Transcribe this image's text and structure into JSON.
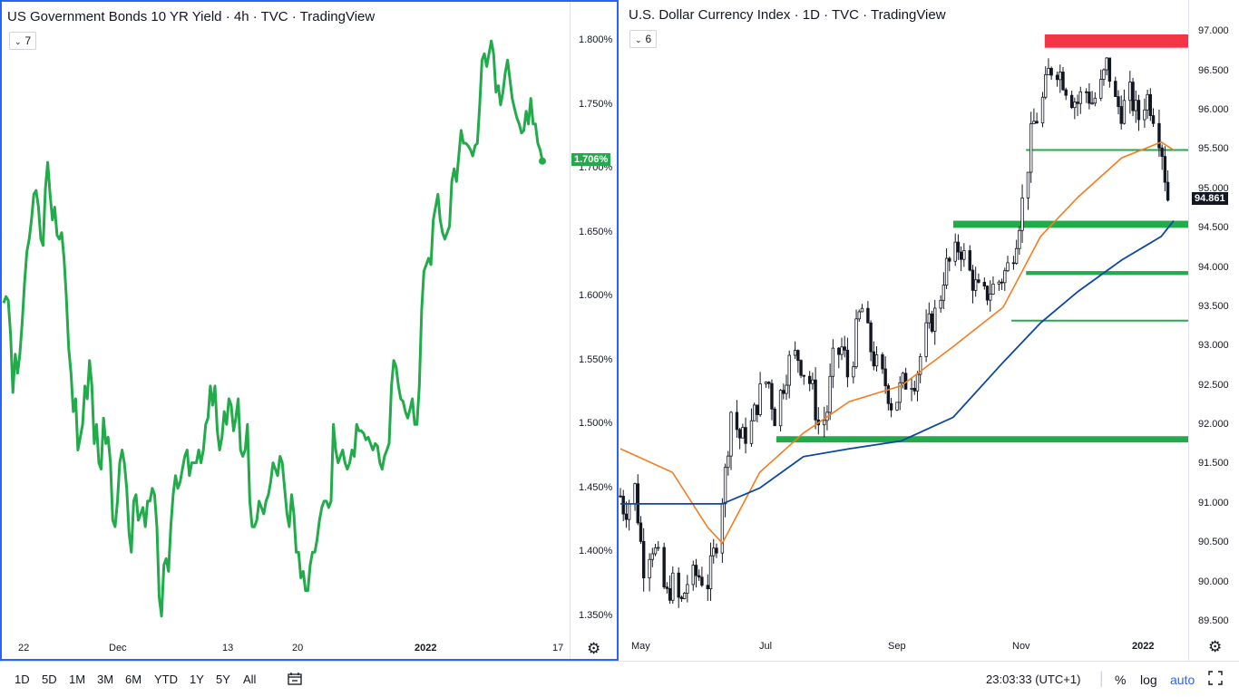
{
  "left_pane": {
    "title": "US Government Bonds 10 YR Yield · 4h · TVC · TradingView",
    "collapse_count": "7",
    "last_value_label": "1.706%",
    "line_color": "#22ab4a",
    "price_axis_labels": [
      "1.800%",
      "1.750%",
      "1.700%",
      "1.650%",
      "1.600%",
      "1.550%",
      "1.500%",
      "1.450%",
      "1.400%",
      "1.350%"
    ],
    "time_axis_labels": [
      {
        "text": "22",
        "bold": false
      },
      {
        "text": "Dec",
        "bold": false
      },
      {
        "text": "13",
        "bold": false
      },
      {
        "text": "20",
        "bold": false
      },
      {
        "text": "2022",
        "bold": true
      },
      {
        "text": "17",
        "bold": false
      }
    ]
  },
  "right_pane": {
    "title": "U.S. Dollar Currency Index · 1D · TVC · TradingView",
    "collapse_count": "6",
    "last_value_label": "94.861",
    "price_axis_labels": [
      "97.000",
      "96.500",
      "96.000",
      "95.500",
      "95.000",
      "94.500",
      "94.000",
      "93.500",
      "93.000",
      "92.500",
      "92.000",
      "91.500",
      "91.000",
      "90.500",
      "90.000",
      "89.500"
    ],
    "time_axis_labels": [
      {
        "text": "May",
        "bold": false
      },
      {
        "text": "Jul",
        "bold": false
      },
      {
        "text": "Sep",
        "bold": false
      },
      {
        "text": "Nov",
        "bold": false
      },
      {
        "text": "2022",
        "bold": true
      }
    ],
    "colors": {
      "resistance": "#f23645",
      "support": "#22ab4a",
      "ma_fast": "#f57c1f",
      "ma_slow": "#0d47a1"
    }
  },
  "toolbar": {
    "ranges": [
      "1D",
      "5D",
      "1M",
      "3M",
      "6M",
      "YTD",
      "1Y",
      "5Y",
      "All"
    ],
    "compare_icon": "calendar-range-icon",
    "clock": "23:03:33 (UTC+1)",
    "percent": "%",
    "log": "log",
    "auto": "auto",
    "fullscreen_icon": "fullscreen-icon"
  },
  "chart_data": [
    {
      "type": "line",
      "title": "US Government Bonds 10 YR Yield · 4h · TVC · TradingView",
      "xlabel": "",
      "ylabel": "",
      "x_ticks": [
        "22",
        "Dec",
        "13",
        "20",
        "2022",
        "17"
      ],
      "ylim": [
        1.33,
        1.815
      ],
      "last_value": 1.706,
      "series": [
        {
          "values": [
            1.595,
            1.6,
            1.597,
            1.57,
            1.525,
            1.555,
            1.54,
            1.555,
            1.58,
            1.61,
            1.635,
            1.645,
            1.66,
            1.68,
            1.683,
            1.67,
            1.645,
            1.64,
            1.685,
            1.705,
            1.68,
            1.66,
            1.67,
            1.648,
            1.645,
            1.65,
            1.63,
            1.6,
            1.56,
            1.54,
            1.51,
            1.52,
            1.48,
            1.49,
            1.5,
            1.53,
            1.52,
            1.55,
            1.53,
            1.485,
            1.5,
            1.47,
            1.465,
            1.505,
            1.485,
            1.49,
            1.47,
            1.425,
            1.42,
            1.44,
            1.47,
            1.48,
            1.47,
            1.45,
            1.415,
            1.4,
            1.44,
            1.445,
            1.425,
            1.43,
            1.435,
            1.42,
            1.44,
            1.44,
            1.45,
            1.445,
            1.42,
            1.365,
            1.35,
            1.39,
            1.395,
            1.385,
            1.42,
            1.445,
            1.46,
            1.45,
            1.455,
            1.465,
            1.475,
            1.48,
            1.46,
            1.47,
            1.47,
            1.47,
            1.48,
            1.47,
            1.48,
            1.5,
            1.505,
            1.53,
            1.515,
            1.53,
            1.495,
            1.48,
            1.49,
            1.51,
            1.5,
            1.52,
            1.515,
            1.495,
            1.505,
            1.52,
            1.48,
            1.475,
            1.48,
            1.5,
            1.44,
            1.42,
            1.42,
            1.425,
            1.44,
            1.435,
            1.43,
            1.44,
            1.445,
            1.455,
            1.47,
            1.465,
            1.46,
            1.475,
            1.47,
            1.45,
            1.43,
            1.42,
            1.445,
            1.43,
            1.4,
            1.4,
            1.38,
            1.385,
            1.37,
            1.37,
            1.39,
            1.4,
            1.4,
            1.41,
            1.425,
            1.435,
            1.44,
            1.44,
            1.435,
            1.44,
            1.5,
            1.48,
            1.47,
            1.475,
            1.48,
            1.47,
            1.465,
            1.47,
            1.48,
            1.475,
            1.5,
            1.495,
            1.495,
            1.493,
            1.488,
            1.49,
            1.485,
            1.48,
            1.485,
            1.483,
            1.47,
            1.465,
            1.475,
            1.48,
            1.485,
            1.53,
            1.55,
            1.545,
            1.53,
            1.52,
            1.518,
            1.51,
            1.505,
            1.512,
            1.52,
            1.5,
            1.5,
            1.53,
            1.59,
            1.62,
            1.625,
            1.63,
            1.625,
            1.66,
            1.67,
            1.68,
            1.66,
            1.65,
            1.645,
            1.65,
            1.655,
            1.69,
            1.7,
            1.69,
            1.71,
            1.73,
            1.72,
            1.72,
            1.718,
            1.715,
            1.71,
            1.718,
            1.72,
            1.75,
            1.785,
            1.79,
            1.78,
            1.79,
            1.8,
            1.79,
            1.76,
            1.765,
            1.75,
            1.76,
            1.775,
            1.785,
            1.77,
            1.755,
            1.747,
            1.74,
            1.735,
            1.728,
            1.73,
            1.745,
            1.735,
            1.755,
            1.735,
            1.735,
            1.72,
            1.715,
            1.706
          ]
        }
      ]
    },
    {
      "type": "candlestick",
      "title": "U.S. Dollar Currency Index · 1D · TVC · TradingView",
      "xlabel": "",
      "ylabel": "",
      "x_ticks": [
        "May",
        "Jul",
        "Sep",
        "Nov",
        "2022"
      ],
      "ylim": [
        89.2,
        97.2
      ],
      "last_value": 94.861,
      "close_path": [
        {
          "x": "Apr 26",
          "y": 91.1
        },
        {
          "x": "Apr 28",
          "y": 90.9
        },
        {
          "x": "May 3",
          "y": 91.2
        },
        {
          "x": "May 7",
          "y": 90.2
        },
        {
          "x": "May 11",
          "y": 90.5
        },
        {
          "x": "May 14",
          "y": 90.3
        },
        {
          "x": "May 18",
          "y": 89.8
        },
        {
          "x": "May 21",
          "y": 90.0
        },
        {
          "x": "May 25",
          "y": 89.7
        },
        {
          "x": "May 28",
          "y": 90.0
        },
        {
          "x": "Jun 2",
          "y": 90.1
        },
        {
          "x": "Jun 7",
          "y": 90.0
        },
        {
          "x": "Jun 11",
          "y": 90.5
        },
        {
          "x": "Jun 16",
          "y": 91.5
        },
        {
          "x": "Jun 18",
          "y": 92.2
        },
        {
          "x": "Jun 23",
          "y": 91.8
        },
        {
          "x": "Jun 28",
          "y": 92.0
        },
        {
          "x": "Jul 2",
          "y": 92.4
        },
        {
          "x": "Jul 6",
          "y": 92.6
        },
        {
          "x": "Jul 9",
          "y": 92.1
        },
        {
          "x": "Jul 13",
          "y": 92.5
        },
        {
          "x": "Jul 16",
          "y": 92.8
        },
        {
          "x": "Jul 20",
          "y": 92.9
        },
        {
          "x": "Jul 23",
          "y": 92.7
        },
        {
          "x": "Jul 27",
          "y": 92.5
        },
        {
          "x": "Jul 30",
          "y": 92.0
        },
        {
          "x": "Aug 3",
          "y": 92.1
        },
        {
          "x": "Aug 6",
          "y": 92.8
        },
        {
          "x": "Aug 11",
          "y": 93.0
        },
        {
          "x": "Aug 14",
          "y": 92.5
        },
        {
          "x": "Aug 18",
          "y": 93.3
        },
        {
          "x": "Aug 20",
          "y": 93.5
        },
        {
          "x": "Aug 25",
          "y": 92.9
        },
        {
          "x": "Aug 28",
          "y": 92.7
        },
        {
          "x": "Sep 1",
          "y": 92.5
        },
        {
          "x": "Sep 4",
          "y": 92.2
        },
        {
          "x": "Sep 8",
          "y": 92.5
        },
        {
          "x": "Sep 12",
          "y": 92.6
        },
        {
          "x": "Sep 15",
          "y": 92.6
        },
        {
          "x": "Sep 19",
          "y": 93.1
        },
        {
          "x": "Sep 22",
          "y": 93.3
        },
        {
          "x": "Sep 26",
          "y": 93.5
        },
        {
          "x": "Sep 29",
          "y": 94.0
        },
        {
          "x": "Oct 3",
          "y": 94.1
        },
        {
          "x": "Oct 6",
          "y": 94.3
        },
        {
          "x": "Oct 10",
          "y": 94.0
        },
        {
          "x": "Oct 13",
          "y": 93.8
        },
        {
          "x": "Oct 17",
          "y": 93.6
        },
        {
          "x": "Oct 20",
          "y": 93.7
        },
        {
          "x": "Oct 24",
          "y": 93.8
        },
        {
          "x": "Oct 27",
          "y": 93.9
        },
        {
          "x": "Oct 31",
          "y": 94.1
        },
        {
          "x": "Nov 3",
          "y": 94.5
        },
        {
          "x": "Nov 7",
          "y": 95.1
        },
        {
          "x": "Nov 10",
          "y": 95.8
        },
        {
          "x": "Nov 14",
          "y": 96.0
        },
        {
          "x": "Nov 18",
          "y": 96.5
        },
        {
          "x": "Nov 21",
          "y": 96.6
        },
        {
          "x": "Nov 25",
          "y": 96.4
        },
        {
          "x": "Nov 28",
          "y": 96.2
        },
        {
          "x": "Dec 2",
          "y": 96.1
        },
        {
          "x": "Dec 5",
          "y": 96.3
        },
        {
          "x": "Dec 9",
          "y": 96.1
        },
        {
          "x": "Dec 13",
          "y": 96.3
        },
        {
          "x": "Dec 16",
          "y": 96.6
        },
        {
          "x": "Dec 20",
          "y": 96.1
        },
        {
          "x": "Dec 23",
          "y": 96.0
        },
        {
          "x": "Dec 27",
          "y": 96.2
        },
        {
          "x": "Dec 31",
          "y": 95.9
        },
        {
          "x": "Jan 4",
          "y": 96.2
        },
        {
          "x": "Jan 7",
          "y": 96.0
        },
        {
          "x": "Jan 11",
          "y": 95.6
        },
        {
          "x": "Jan 14",
          "y": 94.9
        },
        {
          "x": "Jan 17",
          "y": 94.861
        }
      ],
      "ma_fast": [
        {
          "x": "Apr 26",
          "y": 91.7
        },
        {
          "x": "May 21",
          "y": 91.4
        },
        {
          "x": "Jun 7",
          "y": 90.7
        },
        {
          "x": "Jun 14",
          "y": 90.5
        },
        {
          "x": "Jul 2",
          "y": 91.4
        },
        {
          "x": "Jul 23",
          "y": 91.9
        },
        {
          "x": "Aug 14",
          "y": 92.3
        },
        {
          "x": "Sep 8",
          "y": 92.5
        },
        {
          "x": "Oct 3",
          "y": 93.0
        },
        {
          "x": "Oct 27",
          "y": 93.5
        },
        {
          "x": "Nov 14",
          "y": 94.4
        },
        {
          "x": "Dec 2",
          "y": 94.9
        },
        {
          "x": "Dec 23",
          "y": 95.4
        },
        {
          "x": "Jan 11",
          "y": 95.6
        },
        {
          "x": "Jan 17",
          "y": 95.5
        }
      ],
      "ma_slow": [
        {
          "x": "Apr 26",
          "y": 91.0
        },
        {
          "x": "May 21",
          "y": 91.0
        },
        {
          "x": "Jun 14",
          "y": 91.0
        },
        {
          "x": "Jul 2",
          "y": 91.2
        },
        {
          "x": "Jul 23",
          "y": 91.6
        },
        {
          "x": "Aug 14",
          "y": 91.7
        },
        {
          "x": "Sep 8",
          "y": 91.8
        },
        {
          "x": "Oct 3",
          "y": 92.1
        },
        {
          "x": "Oct 27",
          "y": 92.8
        },
        {
          "x": "Nov 14",
          "y": 93.3
        },
        {
          "x": "Dec 2",
          "y": 93.7
        },
        {
          "x": "Dec 23",
          "y": 94.1
        },
        {
          "x": "Jan 11",
          "y": 94.4
        },
        {
          "x": "Jan 17",
          "y": 94.6
        }
      ],
      "zones": [
        {
          "kind": "resistance",
          "from": "Nov 16",
          "to": "Jan 17",
          "y_low": 96.8,
          "y_high": 96.97
        },
        {
          "kind": "support",
          "from": "Nov 7",
          "to": "Jan 17",
          "y": 95.5,
          "thick": false
        },
        {
          "kind": "support",
          "from": "Oct 3",
          "to": "Jan 17",
          "y_low": 94.51,
          "y_high": 94.6,
          "thick": true
        },
        {
          "kind": "support",
          "from": "Nov 7",
          "to": "Jan 17",
          "y_low": 93.91,
          "y_high": 93.96,
          "thick": true
        },
        {
          "kind": "support",
          "from": "Oct 31",
          "to": "Jan 17",
          "y": 93.33,
          "thick": false
        },
        {
          "kind": "support",
          "from": "Jul 10",
          "to": "Jan 17",
          "y_low": 91.78,
          "y_high": 91.86,
          "thick": true
        }
      ]
    }
  ]
}
